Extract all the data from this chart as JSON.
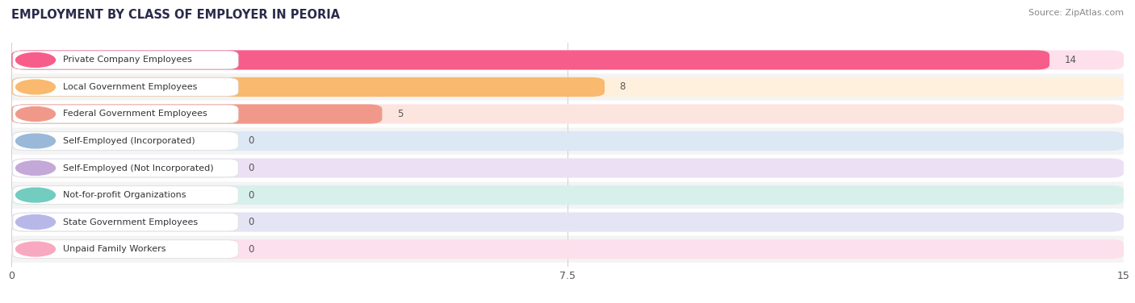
{
  "title": "EMPLOYMENT BY CLASS OF EMPLOYER IN PEORIA",
  "source": "Source: ZipAtlas.com",
  "categories": [
    "Private Company Employees",
    "Local Government Employees",
    "Federal Government Employees",
    "Self-Employed (Incorporated)",
    "Self-Employed (Not Incorporated)",
    "Not-for-profit Organizations",
    "State Government Employees",
    "Unpaid Family Workers"
  ],
  "values": [
    14,
    8,
    5,
    0,
    0,
    0,
    0,
    0
  ],
  "bar_colors": [
    "#f75d8a",
    "#f9b96e",
    "#f0998a",
    "#9ab8d8",
    "#c4a8d8",
    "#72ccc0",
    "#b8b8e8",
    "#f8a8c0"
  ],
  "bar_bg_colors": [
    "#fde0eb",
    "#fef0dc",
    "#fce4df",
    "#dce8f4",
    "#ece0f4",
    "#d8f0ec",
    "#e4e4f4",
    "#fce0ec"
  ],
  "circle_colors": [
    "#f75d8a",
    "#f9b96e",
    "#f0998a",
    "#9ab8d8",
    "#c4a8d8",
    "#72ccc0",
    "#b8b8e8",
    "#f8a8c0"
  ],
  "xlim": [
    0,
    15
  ],
  "xticks": [
    0,
    7.5,
    15
  ],
  "background_color": "#ffffff",
  "row_bg_color": "#f4f4f4",
  "label_box_color": "#ffffff"
}
